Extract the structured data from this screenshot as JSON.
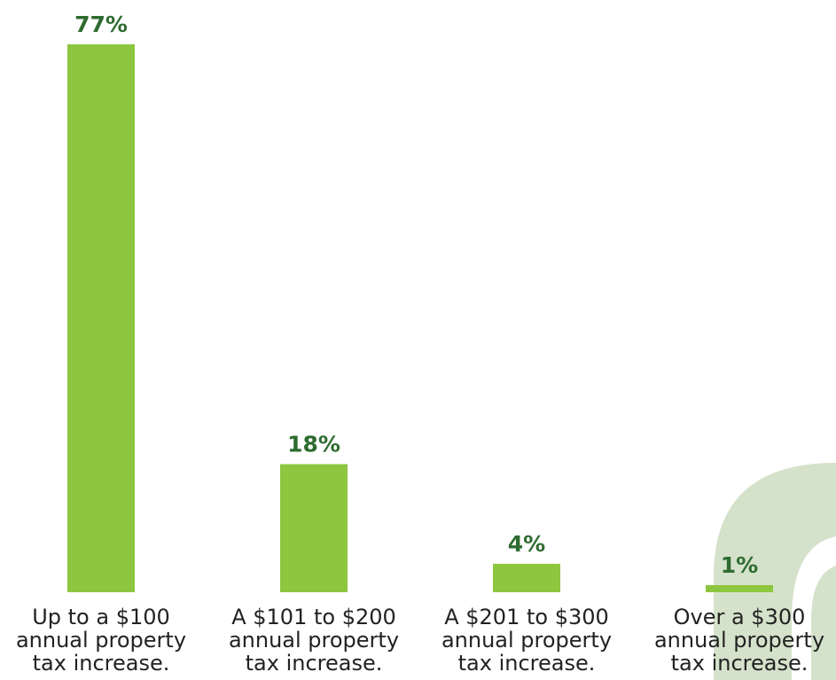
{
  "chart_data": {
    "type": "bar",
    "categories": [
      "Up to a $100 annual property tax increase.",
      "A $101 to $200 annual property tax increase.",
      "A $201 to $300 annual property tax increase.",
      "Over a $300 annual property tax increase."
    ],
    "values": [
      77,
      18,
      4,
      1
    ],
    "value_labels": [
      "77%",
      "18%",
      "4%",
      "1%"
    ],
    "color": "#8dc63f"
  }
}
